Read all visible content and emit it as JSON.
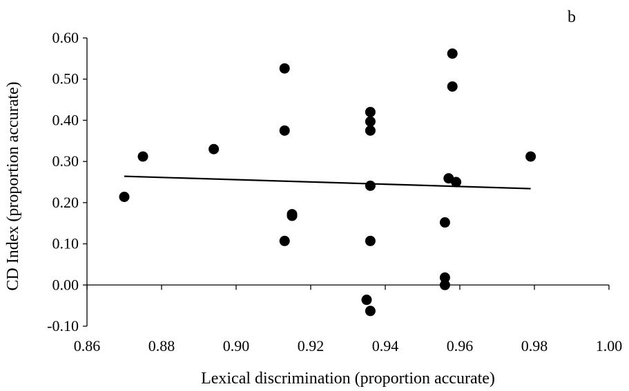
{
  "chart_data": {
    "type": "scatter",
    "panel_label": "b",
    "title": "",
    "xlabel": "Lexical discrimination (proportion accurate)",
    "ylabel": "CD Index (proportion accurate)",
    "xlim": [
      0.86,
      1.0
    ],
    "ylim": [
      -0.1,
      0.6
    ],
    "xticks": [
      "0.86",
      "0.88",
      "0.90",
      "0.92",
      "0.94",
      "0.96",
      "0.98",
      "1.00"
    ],
    "yticks": [
      "-0.10",
      "0.00",
      "0.10",
      "0.20",
      "0.30",
      "0.40",
      "0.50",
      "0.60"
    ],
    "grid": false,
    "legend": false,
    "point_color": "#000000",
    "points": [
      {
        "x": 0.87,
        "y": 0.214
      },
      {
        "x": 0.875,
        "y": 0.312
      },
      {
        "x": 0.894,
        "y": 0.33
      },
      {
        "x": 0.913,
        "y": 0.526
      },
      {
        "x": 0.913,
        "y": 0.375
      },
      {
        "x": 0.913,
        "y": 0.107
      },
      {
        "x": 0.915,
        "y": 0.172
      },
      {
        "x": 0.915,
        "y": 0.168
      },
      {
        "x": 0.935,
        "y": -0.036
      },
      {
        "x": 0.936,
        "y": -0.063
      },
      {
        "x": 0.936,
        "y": 0.42
      },
      {
        "x": 0.936,
        "y": 0.397
      },
      {
        "x": 0.936,
        "y": 0.375
      },
      {
        "x": 0.936,
        "y": 0.241
      },
      {
        "x": 0.936,
        "y": 0.107
      },
      {
        "x": 0.957,
        "y": 0.259
      },
      {
        "x": 0.956,
        "y": 0.152
      },
      {
        "x": 0.956,
        "y": 0.018
      },
      {
        "x": 0.956,
        "y": 0.0
      },
      {
        "x": 0.958,
        "y": 0.562
      },
      {
        "x": 0.958,
        "y": 0.482
      },
      {
        "x": 0.959,
        "y": 0.25
      },
      {
        "x": 0.979,
        "y": 0.312
      }
    ],
    "trendline": {
      "x": [
        0.87,
        0.979
      ],
      "y": [
        0.264,
        0.234
      ]
    }
  }
}
